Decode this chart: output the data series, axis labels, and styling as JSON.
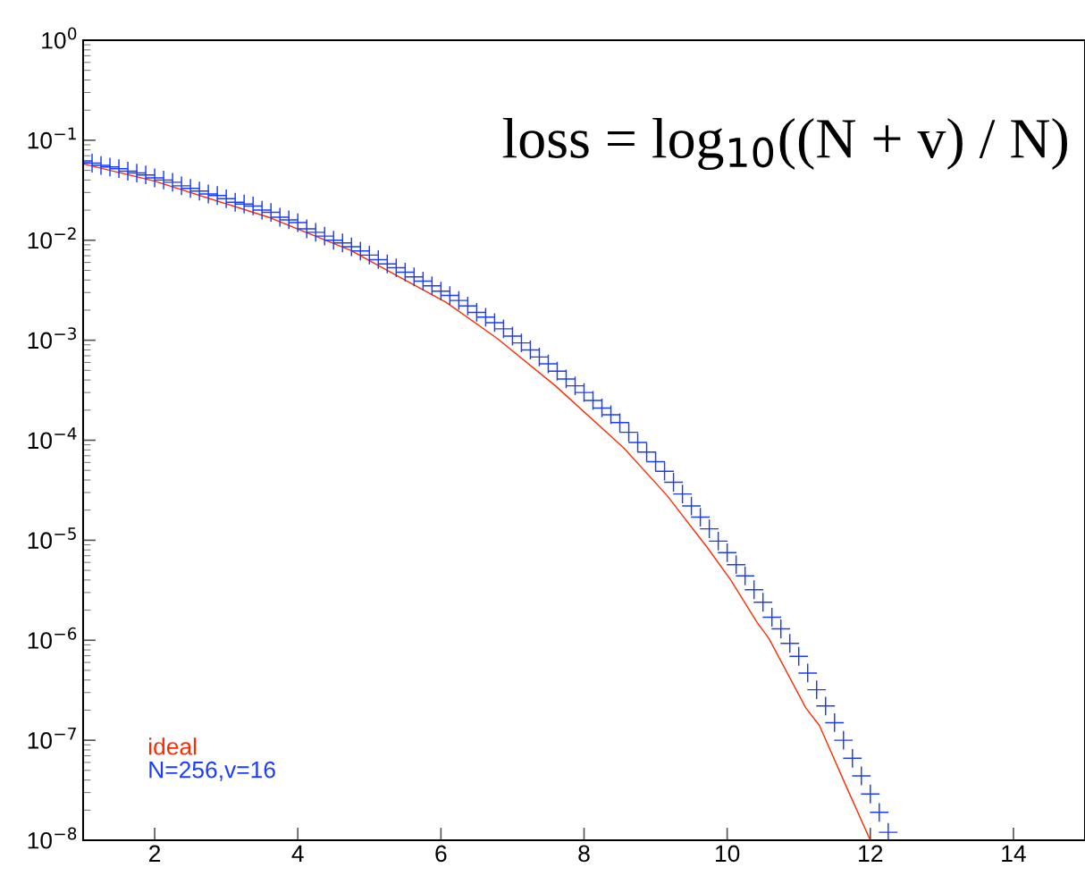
{
  "chart_data": {
    "type": "line",
    "xlim": [
      1,
      15
    ],
    "xticks": [
      2,
      4,
      6,
      8,
      10,
      12,
      14
    ],
    "ylim": [
      1e-08,
      1
    ],
    "log": "y",
    "yticks": [
      {
        "value": 1,
        "label": "10$^{0}$"
      },
      {
        "value": 0.1,
        "label": "10$^{−1}$"
      },
      {
        "value": 0.01,
        "label": "10$^{−2}$"
      },
      {
        "value": 0.001,
        "label": "10$^{−3}$"
      },
      {
        "value": 0.0001,
        "label": "10$^{−4}$"
      },
      {
        "value": 1e-05,
        "label": "10$^{−5}$"
      },
      {
        "value": 1e-06,
        "label": "10$^{−6}$"
      },
      {
        "value": 1e-07,
        "label": "10$^{−7}$"
      },
      {
        "value": 1e-08,
        "label": "10$^{−8}$"
      }
    ],
    "grid": false,
    "legend": "bottom left",
    "annotations": [
      "loss = log$_{10}$((N + v) / N)"
    ],
    "series": [
      {
        "name": "ideal",
        "color": "#ff2a00",
        "marker": "none",
        "line_style": "solid",
        "x": [
          1.0,
          2.0,
          3.59,
          4.74,
          5.5,
          6.07,
          6.78,
          7.6,
          8.56,
          9.16,
          9.72,
          10.05,
          10.42,
          10.58,
          11.1,
          11.29,
          11.66,
          12.0
        ],
        "values": [
          0.058,
          0.039,
          0.017,
          0.0079,
          0.004,
          0.0024,
          0.00105,
          0.00035,
          8.3e-05,
          2.8e-05,
          8.5e-06,
          4e-06,
          1.5e-06,
          1.05e-06,
          2.1e-07,
          1.4e-07,
          3.5e-08,
          1e-08
        ]
      },
      {
        "name": "N=256,v=16",
        "color": "#1a3cff",
        "type": "scatter",
        "marker": "cross",
        "x": [
          1.0,
          1.125,
          1.25,
          1.375,
          1.5,
          1.625,
          1.75,
          1.875,
          2.0,
          2.125,
          2.25,
          2.375,
          2.5,
          2.625,
          2.75,
          2.875,
          3.0,
          3.125,
          3.25,
          3.375,
          3.5,
          3.625,
          3.75,
          3.875,
          4.0,
          4.125,
          4.25,
          4.375,
          4.5,
          4.625,
          4.75,
          4.875,
          5.0,
          5.125,
          5.25,
          5.375,
          5.5,
          5.625,
          5.75,
          5.875,
          6.0,
          6.125,
          6.25,
          6.375,
          6.5,
          6.625,
          6.75,
          6.875,
          7.0,
          7.125,
          7.25,
          7.375,
          7.5,
          7.625,
          7.75,
          7.875,
          8.0,
          8.125,
          8.25,
          8.375,
          8.5,
          8.625,
          8.75,
          8.875,
          9.0,
          9.125,
          9.25,
          9.375,
          9.5,
          9.625,
          9.75,
          9.875,
          10.0,
          10.125,
          10.25,
          10.375,
          10.5,
          10.625,
          10.75,
          10.875,
          11.0,
          11.125,
          11.25,
          11.375,
          11.5,
          11.625,
          11.75,
          11.875,
          12.0,
          12.125,
          12.25
        ],
        "values": [
          0.062,
          0.059,
          0.056,
          0.054,
          0.052,
          0.049,
          0.047,
          0.045,
          0.042,
          0.04,
          0.038,
          0.035,
          0.033,
          0.031,
          0.029,
          0.028,
          0.026,
          0.024,
          0.023,
          0.022,
          0.02,
          0.019,
          0.017,
          0.016,
          0.015,
          0.013,
          0.012,
          0.011,
          0.01,
          0.0094,
          0.0086,
          0.0078,
          0.0071,
          0.0064,
          0.0058,
          0.0053,
          0.0048,
          0.0043,
          0.0039,
          0.0035,
          0.0031,
          0.0028,
          0.0025,
          0.0022,
          0.0019,
          0.0017,
          0.0015,
          0.0013,
          0.0011,
          0.00094,
          0.0008,
          0.00068,
          0.00058,
          0.00049,
          0.00041,
          0.00035,
          0.0003,
          0.00025,
          0.00021,
          0.00018,
          0.00015,
          0.00012,
          9.5e-05,
          7.6e-05,
          6.1e-05,
          4.9e-05,
          3.8e-05,
          2.9e-05,
          2.2e-05,
          1.7e-05,
          1.3e-05,
          9.8e-06,
          7.5e-06,
          5.7e-06,
          4.4e-06,
          3.2e-06,
          2.4e-06,
          1.7e-06,
          1.3e-06,
          9.3e-07,
          6.9e-07,
          4.7e-07,
          3.2e-07,
          2.2e-07,
          1.5e-07,
          1e-07,
          6.6e-08,
          4.4e-08,
          2.9e-08,
          1.9e-08,
          1.2e-08
        ]
      }
    ]
  }
}
